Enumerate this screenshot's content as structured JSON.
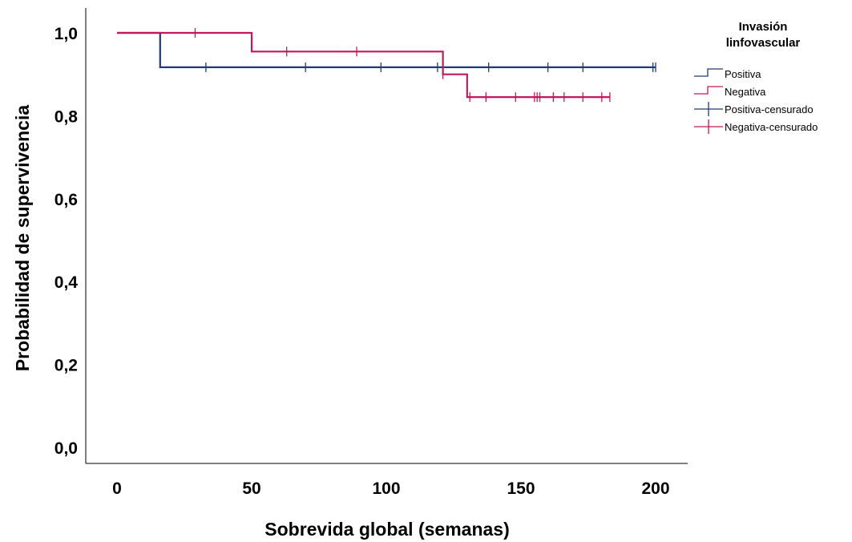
{
  "chart_data": {
    "type": "line",
    "xlabel": "Sobrevida global (semanas)",
    "ylabel": "Probabilidad de supervivencia",
    "xlim": [
      0,
      200
    ],
    "ylim": [
      0,
      1.0
    ],
    "x_ticks": [
      "0",
      "50",
      "100",
      "150",
      "200"
    ],
    "y_ticks": [
      "0,0",
      "0,2",
      "0,4",
      "0,6",
      "0,8",
      "1,0"
    ],
    "grid": false,
    "legend": {
      "title_lines": [
        "Invasión",
        "linfovascular"
      ],
      "placement": "right",
      "entries": [
        "Positiva",
        "Negativa",
        "Positiva-censurado",
        "Negativa-censurado"
      ]
    },
    "series": [
      {
        "name": "Positiva",
        "color": "#1f3a7a",
        "steps": [
          [
            0,
            1.0
          ],
          [
            16,
            1.0
          ],
          [
            16,
            0.917
          ],
          [
            200,
            0.917
          ]
        ],
        "censored": [
          33,
          70,
          98,
          119,
          138,
          160,
          173,
          199,
          200
        ]
      },
      {
        "name": "Negativa",
        "color": "#c2185b",
        "steps": [
          [
            0,
            1.0
          ],
          [
            50,
            1.0
          ],
          [
            50,
            0.955
          ],
          [
            121,
            0.955
          ],
          [
            121,
            0.9
          ],
          [
            130,
            0.9
          ],
          [
            130,
            0.845
          ],
          [
            183,
            0.845
          ]
        ],
        "censored": [
          29,
          63,
          89,
          121,
          131,
          137,
          148,
          155,
          156,
          157,
          162,
          166,
          173,
          180,
          183
        ]
      }
    ]
  }
}
